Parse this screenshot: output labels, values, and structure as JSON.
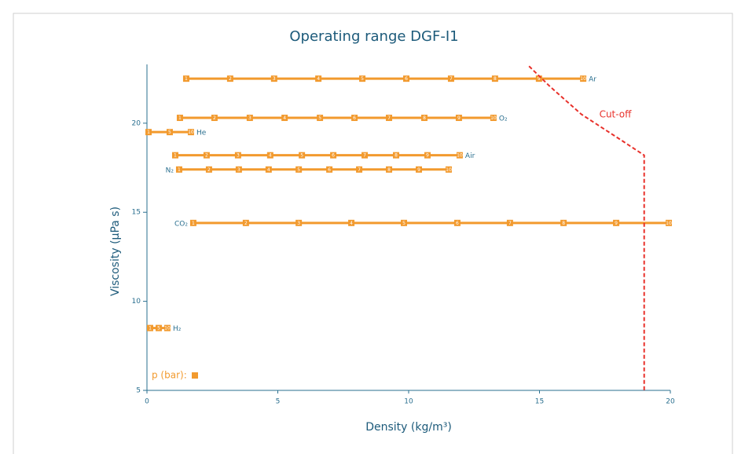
{
  "chart_data": {
    "type": "line",
    "title": "Operating range DGF-I1",
    "x_label": "Density (kg/m³)",
    "y_label": "Viscosity (µPa s)",
    "xlim": [
      0,
      20
    ],
    "ylim": [
      5,
      23.3
    ],
    "xticks": [
      0,
      5,
      10,
      15,
      20
    ],
    "yticks": [
      5,
      10,
      15,
      20
    ],
    "legend_label": "p (bar):",
    "series": [
      {
        "name": "Ar",
        "color": "#f29a2e",
        "label_side": "right",
        "x": [
          1.5,
          3.18,
          4.86,
          6.55,
          8.23,
          9.91,
          11.62,
          13.3,
          14.98,
          16.67
        ],
        "values": [
          22.5,
          22.5,
          22.5,
          22.5,
          22.5,
          22.5,
          22.5,
          22.5,
          22.5,
          22.5
        ],
        "point_labels": [
          1,
          2,
          3,
          4,
          5,
          6,
          7,
          8,
          9,
          10
        ]
      },
      {
        "name": "O₂",
        "color": "#f29a2e",
        "label_side": "right",
        "x": [
          1.26,
          2.58,
          3.93,
          5.26,
          6.61,
          7.93,
          9.25,
          10.6,
          11.92,
          13.24
        ],
        "values": [
          20.3,
          20.3,
          20.3,
          20.3,
          20.3,
          20.3,
          20.3,
          20.3,
          20.3,
          20.3
        ],
        "point_labels": [
          1,
          2,
          3,
          4,
          5,
          6,
          7,
          8,
          9,
          10
        ]
      },
      {
        "name": "He",
        "color": "#f29a2e",
        "label_side": "right",
        "x": [
          0.06,
          0.87,
          1.68
        ],
        "values": [
          19.5,
          19.5,
          19.5
        ],
        "point_labels": [
          1,
          5,
          10
        ]
      },
      {
        "name": "Air",
        "color": "#f29a2e",
        "label_side": "right",
        "x": [
          1.08,
          2.28,
          3.48,
          4.71,
          5.92,
          7.12,
          8.32,
          9.52,
          10.72,
          11.95
        ],
        "values": [
          18.2,
          18.2,
          18.2,
          18.2,
          18.2,
          18.2,
          18.2,
          18.2,
          18.2,
          18.2
        ],
        "point_labels": [
          1,
          2,
          3,
          4,
          5,
          6,
          7,
          8,
          9,
          10
        ]
      },
      {
        "name": "N₂",
        "color": "#f29a2e",
        "label_side": "left",
        "x": [
          1.23,
          2.37,
          3.51,
          4.65,
          5.8,
          6.97,
          8.11,
          9.25,
          10.39,
          11.53
        ],
        "values": [
          17.4,
          17.4,
          17.4,
          17.4,
          17.4,
          17.4,
          17.4,
          17.4,
          17.4,
          17.4
        ],
        "point_labels": [
          1,
          2,
          3,
          4,
          5,
          6,
          7,
          8,
          9,
          10
        ]
      },
      {
        "name": "CO₂",
        "color": "#f29a2e",
        "label_side": "left",
        "x": [
          1.77,
          3.78,
          5.8,
          7.81,
          9.82,
          11.86,
          13.87,
          15.92,
          17.93,
          19.94
        ],
        "values": [
          14.4,
          14.4,
          14.4,
          14.4,
          14.4,
          14.4,
          14.4,
          14.4,
          14.4,
          14.4
        ],
        "point_labels": [
          1,
          2,
          3,
          4,
          5,
          6,
          7,
          8,
          9,
          10
        ]
      },
      {
        "name": "H₂",
        "color": "#f29a2e",
        "label_side": "right",
        "x": [
          0.12,
          0.45,
          0.78
        ],
        "values": [
          8.5,
          8.5,
          8.5
        ],
        "point_labels": [
          1,
          5,
          10
        ]
      }
    ],
    "cutoff": {
      "name": "Cut-off",
      "color": "#e8302a",
      "x": [
        14.6,
        15.4,
        16.6,
        18.1,
        19.0,
        19.0
      ],
      "values": [
        23.2,
        22.06,
        20.5,
        19.07,
        18.2,
        5
      ]
    }
  }
}
